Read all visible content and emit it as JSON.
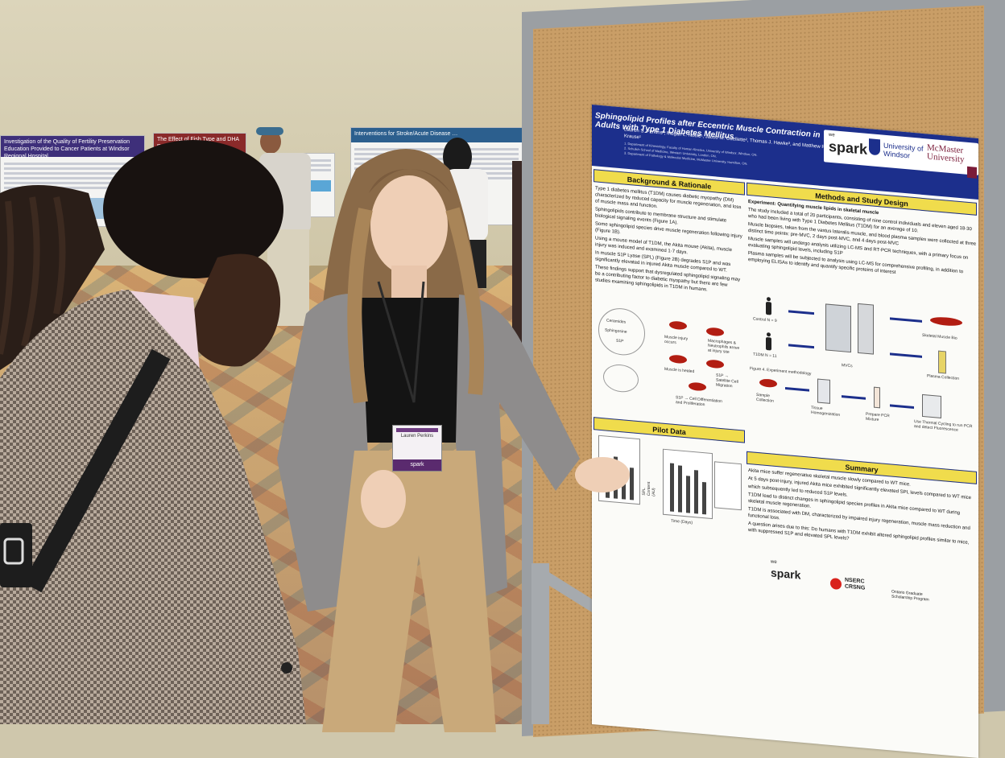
{
  "poster": {
    "title": "Sphingolipid Profiles after Eccentric Muscle Contraction in Adults with Type 1 Diabetes Mellitus",
    "authors": "Lauren S. Perkins¹, Megan L. Noble¹, Jacob M. Ouellette², Thomas J. Hawke³, and Matthew P. Krause¹",
    "affiliations": [
      "1. Department of Kinesiology, Faculty of Human Kinetics, University of Windsor, Windsor, ON.",
      "2. Schulich School of Medicine, Western University, London, ON.",
      "3. Department of Pathology & Molecular Medicine, McMaster University, Hamilton, ON."
    ],
    "logos": {
      "we": "we",
      "spark": "spark",
      "windsor": "University of Windsor",
      "mcmaster": "McMaster University"
    },
    "sections": {
      "background": "Background & Rationale",
      "methods": "Methods and Study Design",
      "pilot": "Pilot Data",
      "summary": "Summary"
    },
    "background_text": [
      "Type 1 diabetes mellitus (T1DM) causes diabetic myopathy (DM) characterized by reduced capacity for muscle regeneration, and loss of muscle mass and function.",
      "Sphingolipids contribute to membrane structure and stimulate biological signaling events (Figure 1A).",
      "Some sphingolipid species drive muscle regeneration following injury (Figure 1B).",
      "Using a mouse model of T1DM, the Akita mouse (Akita), muscle injury was induced and examined 1-7 days.",
      "In muscle S1P Lyase (SPL) (Figure 2B) degrades S1P and was significantly elevated in injured Akita muscle compared to WT.",
      "These findings support that dysregulated sphingolipid signaling may be a contributing factor to diabetic myopathy but there are few studies examining sphingolipids in T1DM in humans."
    ],
    "methods_text": [
      "Experiment: Quantifying muscle lipids in skeletal muscle",
      "The study included a total of 20 participants, consisting of nine control individuals and eleven aged 18-30 who had been living with Type 1 Diabetes Mellitus (T1DM) for an average of 10.",
      "Muscle biopsies, taken from the vastus lateralis muscle, and blood plasma samples were collected at three distinct time points: pre-MVC, 2 days post-MVC, and 4 days post-MVC",
      "Muscle samples will undergo analysis utilizing LC-MS and RT-PCR techniques, with a primary focus on evaluating sphingolipid levels, including S1P",
      "Plasma samples will be subjected to analysis using LC-MS for comprehensive profiling, in addition to employing ELISAs to identify and quantify specific proteins of interest"
    ],
    "methods_labels": {
      "control": "Control N = 9",
      "t1dm": "T1DM N = 11",
      "mvcs": "MVCs",
      "biopsy": "Skeletal Muscle Bio",
      "plasma": "Plasma Collection",
      "sample": "Sample Collection",
      "tissue": "Tissue Homogenization",
      "pcr": "Prepare PCR Mixture",
      "thermal": "Use Thermal Cycling to run PCR and detect Fluorescence",
      "figure": "Figure 4. Experiment methodology"
    },
    "summary_text": [
      "Akita mice suffer regenerative skeletal muscle slowly compared to WT mice.",
      "At 5 days post-injury, injured Akita mice exhibited significantly elevated SPL levels compared to WT mice",
      "which subsequently led to reduced S1P levels.",
      "T1DM lead to distinct changes in sphingolipid species profiles in Akita mice compared to WT during skeletal muscle regeneration.",
      "T1DM is associated with DM, characterized by impaired injury regeneration, muscle mass reduction and functional loss.",
      "A question arises due to this: Do humans with T1DM exhibit altered sphingolipid profiles similar to mice, with suppressed S1P and elevated SPL levels?"
    ],
    "funders": {
      "we": "we",
      "spark": "spark",
      "nserc": "NSERC CRSNG",
      "ontario": "Ontario Graduate Scholarship Program"
    },
    "pilot_labels": {
      "y_axis": "SPL Content (AU)",
      "x_axis": "Time (Days)"
    },
    "diagram_labels": [
      "Ceramides",
      "Sphingosine",
      "S1P",
      "Muscle injury occurs",
      "Macrophages & Neutrophils arrive at injury site",
      "Muscle is healed",
      "S1P → Cell Differentiation and Proliferation",
      "S1P → Satellite Cell Migration"
    ]
  },
  "badge": {
    "name": "Lauren Perkins",
    "brand": "spark"
  },
  "background_posters": [
    {
      "title": "Investigation of the Quality of Fertility Preservation Education Provided to Cancer Patients at Windsor Regional Hospital",
      "color": "#3e2f7a"
    },
    {
      "title": "The Effect of Fish Type and DHA Presence on …",
      "color": "#8a2a2a"
    },
    {
      "title": "Interventions for Stroke/Acute Disease …",
      "color": "#2c5f8e"
    }
  ],
  "colors": {
    "poster_header": "#1c2f8c",
    "section_bar": "#f0dc4c",
    "cork": "#c99e67",
    "jacket": "#9a8a7c",
    "pants": "#c9a97a"
  }
}
